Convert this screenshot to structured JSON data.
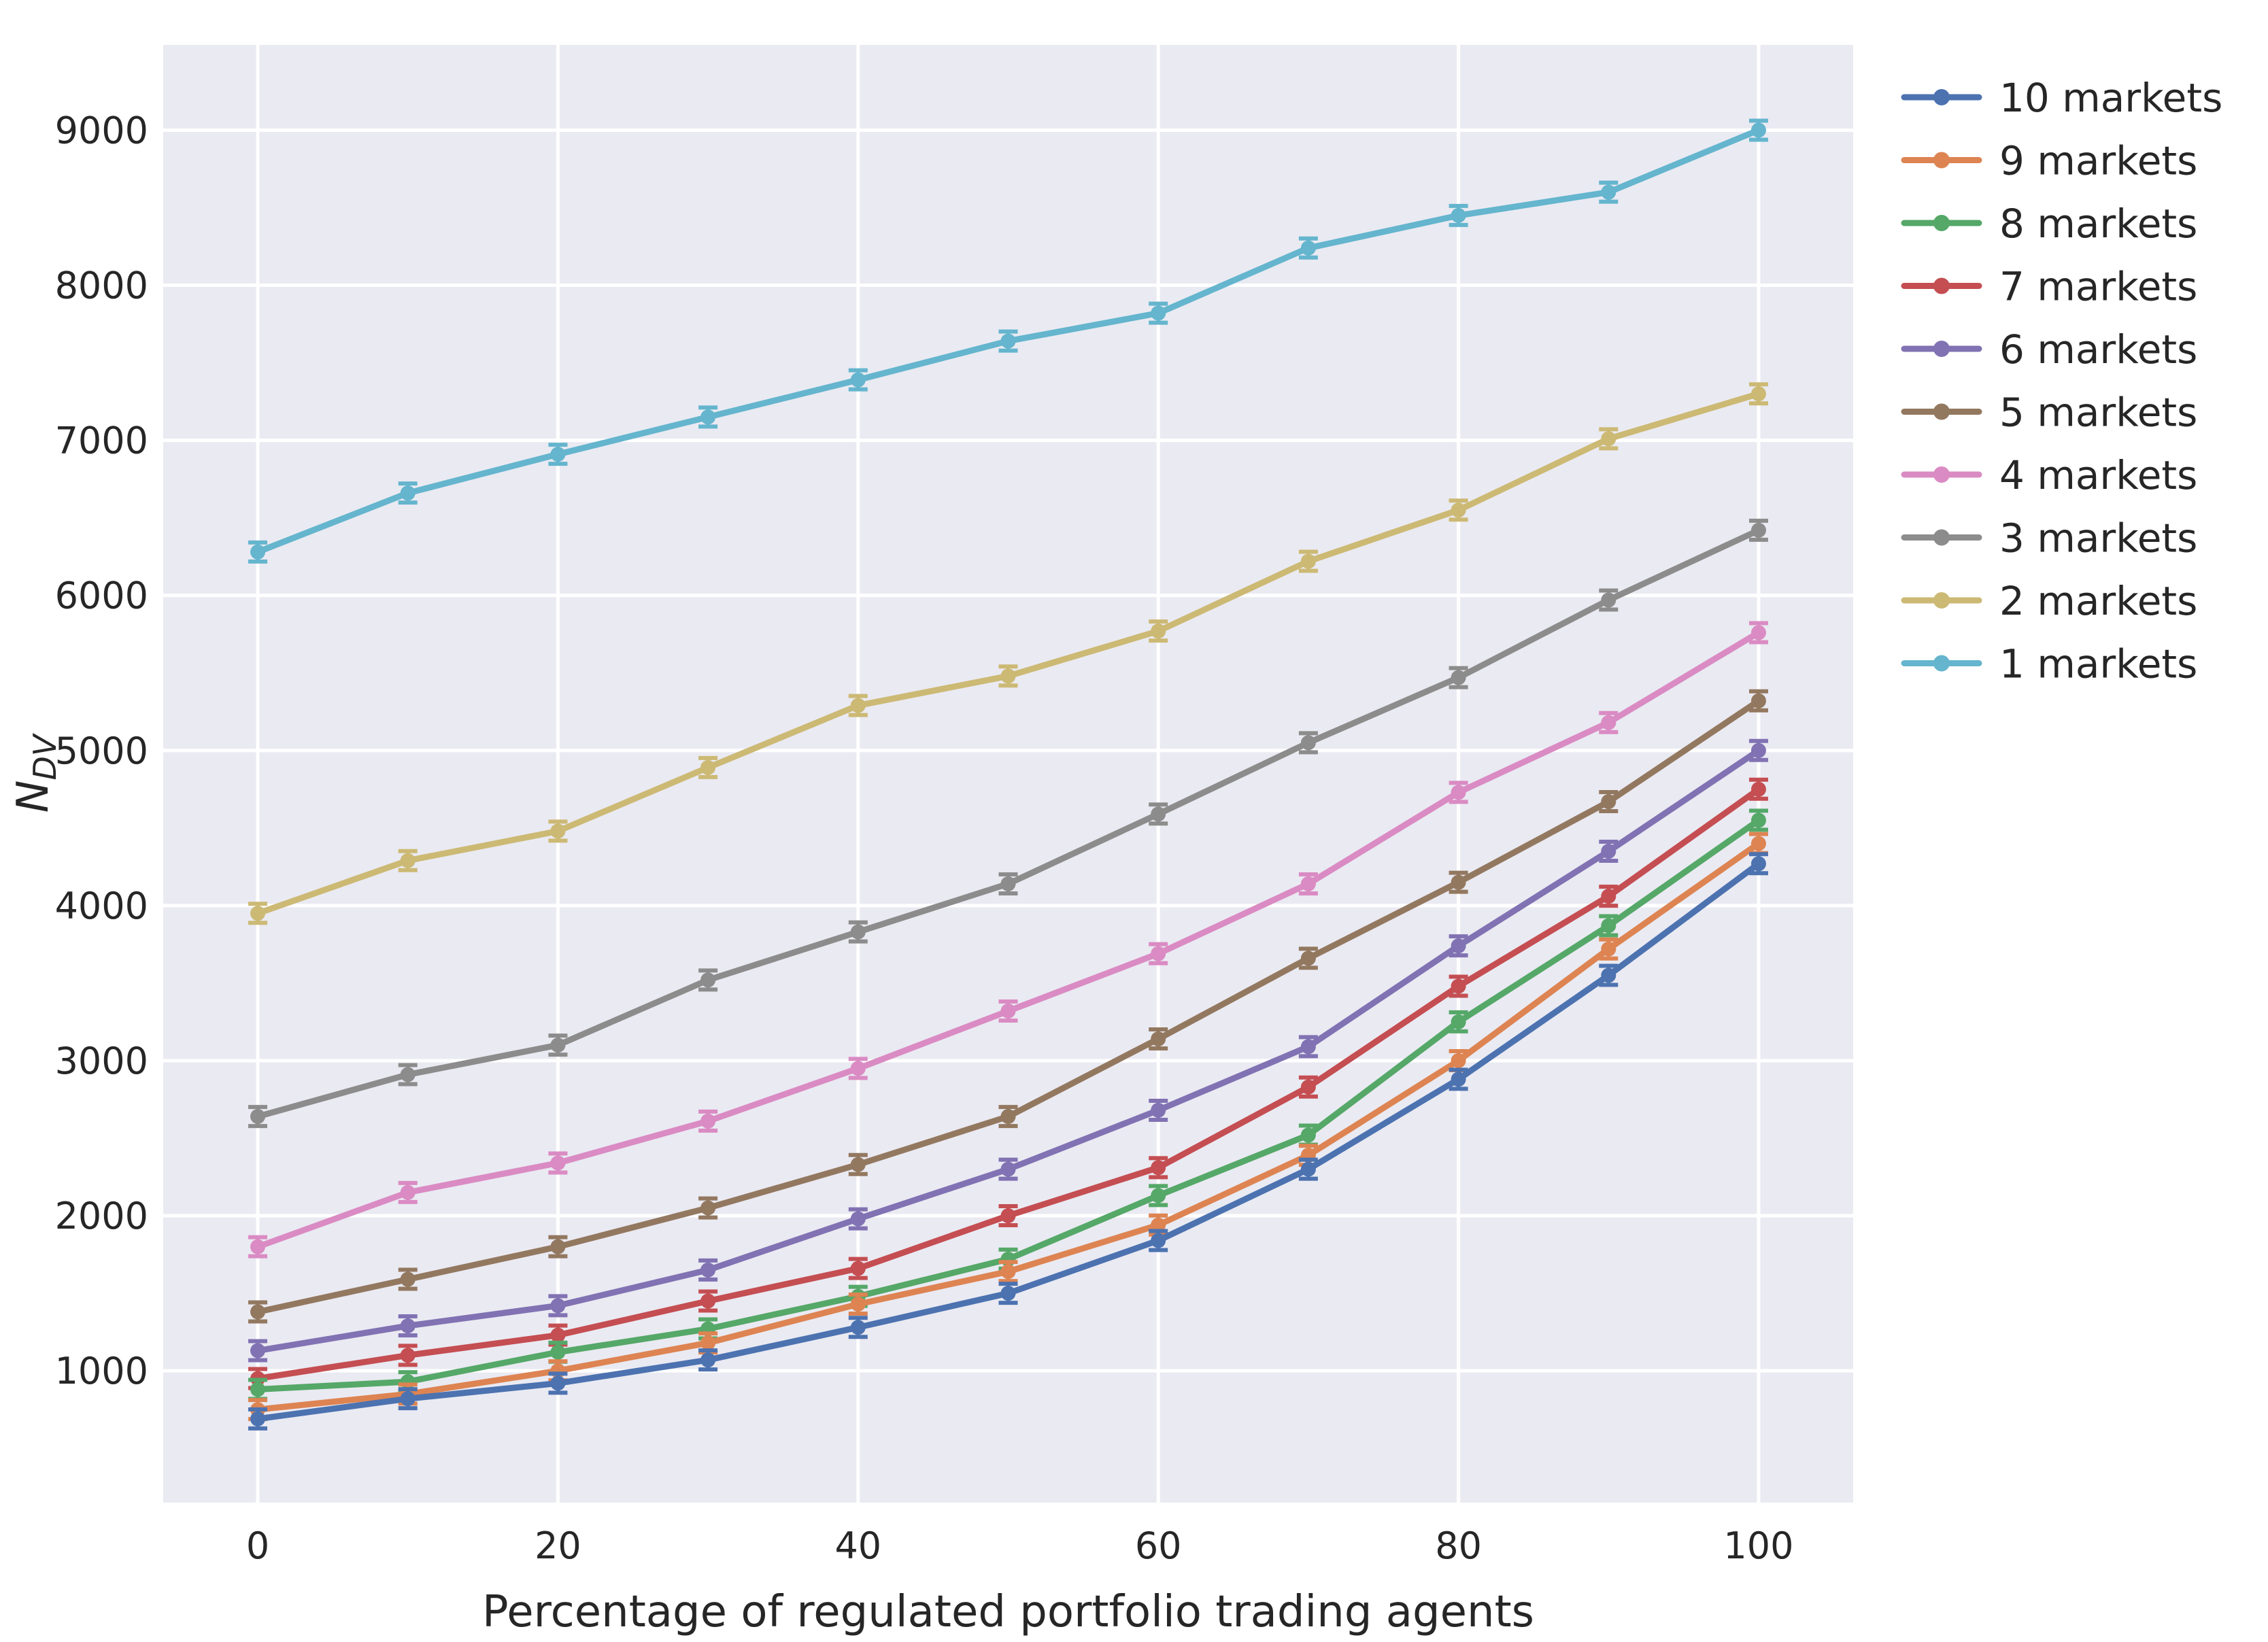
{
  "chart_data": {
    "type": "line",
    "xlabel": "Percentage of regulated portfolio trading agents",
    "ylabel_main": "N",
    "ylabel_sub": "DV",
    "x": [
      0,
      10,
      20,
      30,
      40,
      50,
      60,
      70,
      80,
      90,
      100
    ],
    "xlim": [
      -6.3,
      106.3
    ],
    "ylim": [
      150,
      9550
    ],
    "xticks": [
      0,
      20,
      40,
      60,
      80,
      100
    ],
    "yticks": [
      1000,
      2000,
      3000,
      4000,
      5000,
      6000,
      7000,
      8000,
      9000
    ],
    "grid": true,
    "background": "#EAEAF2",
    "legend_position": "outside-right-top",
    "error_bars": true,
    "series": [
      {
        "name": "10 markets",
        "color": "#4C72B0",
        "values": [
          690,
          820,
          920,
          1070,
          1280,
          1500,
          1840,
          2300,
          2880,
          3550,
          4270
        ]
      },
      {
        "name": "9 markets",
        "color": "#DD8452",
        "values": [
          750,
          850,
          1000,
          1180,
          1430,
          1640,
          1940,
          2390,
          3000,
          3720,
          4400
        ]
      },
      {
        "name": "8 markets",
        "color": "#55A868",
        "values": [
          880,
          930,
          1120,
          1270,
          1480,
          1720,
          2130,
          2520,
          3250,
          3870,
          4550
        ]
      },
      {
        "name": "7 markets",
        "color": "#C44E52",
        "values": [
          950,
          1100,
          1230,
          1450,
          1660,
          2000,
          2310,
          2830,
          3480,
          4060,
          4750
        ]
      },
      {
        "name": "6 markets",
        "color": "#8172B3",
        "values": [
          1130,
          1290,
          1420,
          1650,
          1980,
          2300,
          2680,
          3090,
          3740,
          4350,
          5000
        ]
      },
      {
        "name": "5 markets",
        "color": "#937860",
        "values": [
          1380,
          1590,
          1800,
          2050,
          2330,
          2640,
          3140,
          3660,
          4150,
          4670,
          5320
        ]
      },
      {
        "name": "4 markets",
        "color": "#DA8BC3",
        "values": [
          1800,
          2150,
          2340,
          2610,
          2950,
          3320,
          3690,
          4140,
          4730,
          5180,
          5760
        ]
      },
      {
        "name": "3 markets",
        "color": "#8C8C8C",
        "values": [
          2640,
          2910,
          3100,
          3520,
          3830,
          4140,
          4590,
          5050,
          5470,
          5970,
          6420
        ]
      },
      {
        "name": "2 markets",
        "color": "#CCB974",
        "values": [
          3950,
          4290,
          4480,
          4890,
          5290,
          5480,
          5770,
          6220,
          6550,
          7010,
          7300
        ]
      },
      {
        "name": "1 markets",
        "color": "#64B5CD",
        "values": [
          6280,
          6660,
          6910,
          7150,
          7390,
          7640,
          7820,
          8240,
          8450,
          8600,
          9000
        ]
      }
    ]
  }
}
